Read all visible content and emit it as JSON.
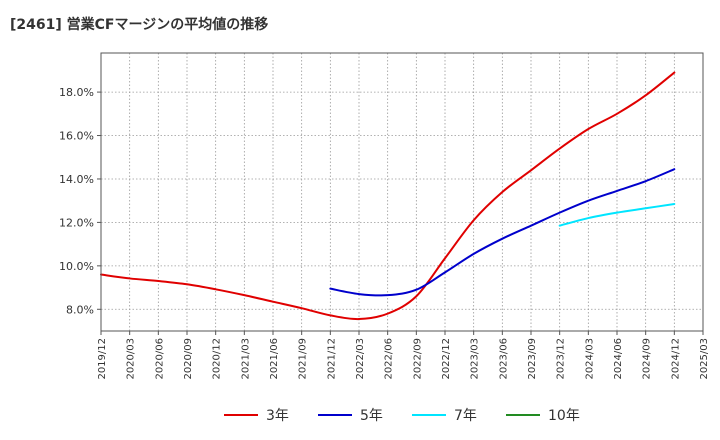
{
  "chart_data": {
    "type": "line",
    "title": "[2461]  営業CFマージンの平均値の推移",
    "xlabel": "",
    "ylabel": "",
    "x": [
      "2019/12",
      "2020/03",
      "2020/06",
      "2020/09",
      "2020/12",
      "2021/03",
      "2021/06",
      "2021/09",
      "2021/12",
      "2022/03",
      "2022/06",
      "2022/09",
      "2022/12",
      "2023/03",
      "2023/06",
      "2023/09",
      "2023/12",
      "2024/03",
      "2024/06",
      "2024/09",
      "2024/12",
      "2025/03"
    ],
    "y_ticks": [
      "8.0%",
      "10.0%",
      "12.0%",
      "14.0%",
      "16.0%",
      "18.0%"
    ],
    "y_tick_values": [
      8,
      10,
      12,
      14,
      16,
      18
    ],
    "ylim": [
      7.0,
      19.8
    ],
    "grid": true,
    "legend_position": "bottom",
    "series": [
      {
        "name": "3年",
        "color": "#e00000",
        "values": [
          9.6,
          9.42,
          9.3,
          9.15,
          8.92,
          8.65,
          8.35,
          8.05,
          7.72,
          7.55,
          7.8,
          8.6,
          10.35,
          12.1,
          13.4,
          14.4,
          15.4,
          16.3,
          17.0,
          17.85,
          18.9,
          null
        ]
      },
      {
        "name": "5年",
        "color": "#0000cc",
        "values": [
          null,
          null,
          null,
          null,
          null,
          null,
          null,
          null,
          8.95,
          8.7,
          8.65,
          8.9,
          9.7,
          10.55,
          11.25,
          11.85,
          12.45,
          13.0,
          13.45,
          13.9,
          14.45,
          null
        ]
      },
      {
        "name": "7年",
        "color": "#00e5ff",
        "values": [
          null,
          null,
          null,
          null,
          null,
          null,
          null,
          null,
          null,
          null,
          null,
          null,
          null,
          null,
          null,
          null,
          11.85,
          12.2,
          12.45,
          12.65,
          12.85,
          null
        ]
      },
      {
        "name": "10年",
        "color": "#228b22",
        "values": [
          null,
          null,
          null,
          null,
          null,
          null,
          null,
          null,
          null,
          null,
          null,
          null,
          null,
          null,
          null,
          null,
          null,
          null,
          null,
          null,
          null,
          null
        ]
      }
    ]
  }
}
